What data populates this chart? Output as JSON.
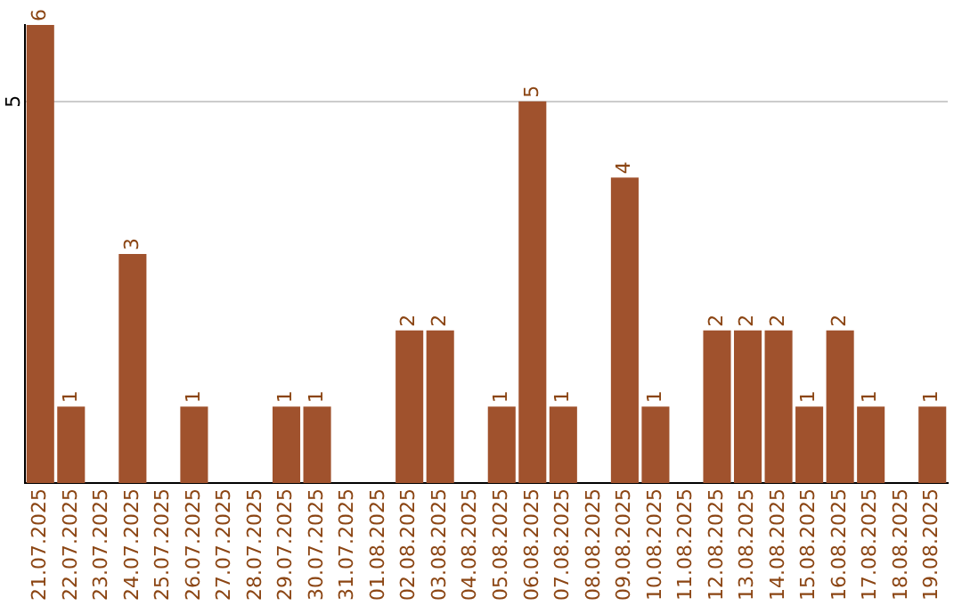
{
  "chart_data": {
    "type": "bar",
    "categories": [
      "21.07.2025",
      "22.07.2025",
      "23.07.2025",
      "24.07.2025",
      "25.07.2025",
      "26.07.2025",
      "27.07.2025",
      "28.07.2025",
      "29.07.2025",
      "30.07.2025",
      "31.07.2025",
      "01.08.2025",
      "02.08.2025",
      "03.08.2025",
      "04.08.2025",
      "05.08.2025",
      "06.08.2025",
      "07.08.2025",
      "08.08.2025",
      "09.08.2025",
      "10.08.2025",
      "11.08.2025",
      "12.08.2025",
      "13.08.2025",
      "14.08.2025",
      "15.08.2025",
      "16.08.2025",
      "17.08.2025",
      "18.08.2025",
      "19.08.2025"
    ],
    "values": [
      6,
      1,
      0,
      3,
      0,
      1,
      0,
      0,
      1,
      1,
      0,
      0,
      2,
      2,
      0,
      1,
      5,
      1,
      0,
      4,
      1,
      0,
      2,
      2,
      2,
      1,
      2,
      1,
      0,
      1
    ],
    "value_labels": [
      "6",
      "1",
      null,
      "3",
      null,
      "1",
      null,
      null,
      "1",
      "1",
      null,
      null,
      "2",
      "2",
      null,
      "1",
      "5",
      "1",
      null,
      "4",
      "1",
      null,
      "2",
      "2",
      "2",
      "1",
      "2",
      "1",
      null,
      "1"
    ],
    "color": "#a0522d",
    "ylim": [
      0,
      6
    ],
    "yticks": [
      5
    ],
    "grid": "y",
    "legend": false
  }
}
